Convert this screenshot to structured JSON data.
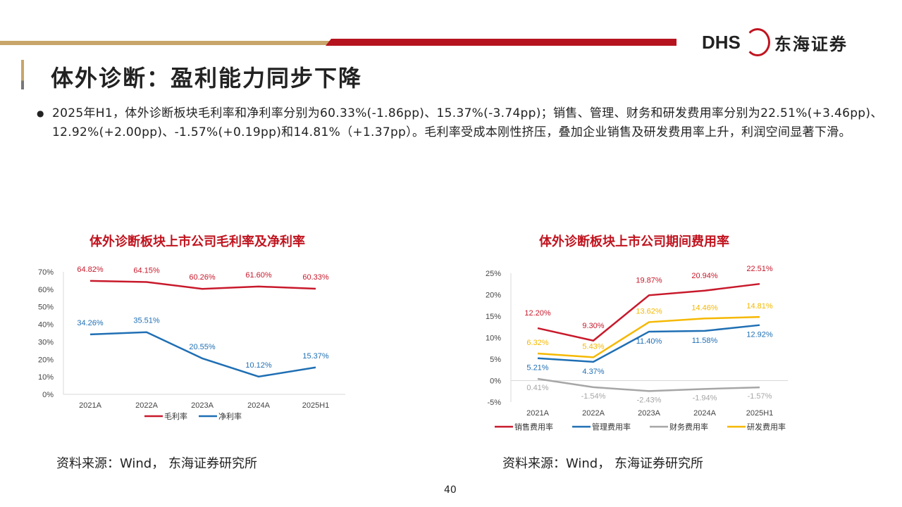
{
  "header": {
    "logo": "DHS 东海证券",
    "title": "体外诊断：盈利能力同步下降"
  },
  "bullet": "2025年H1，体外诊断板块毛利率和净利率分别为60.33%(-1.86pp)、15.37%(-3.74pp)；销售、管理、财务和研发费用率分别为22.51%(+3.46pp)、12.92%(+2.00pp)、-1.57%(+0.19pp)和14.81%（+1.37pp）。毛利率受成本刚性挤压，叠加企业销售及研发费用率上升，利润空间显著下滑。",
  "chart_data": [
    {
      "type": "line",
      "title": "体外诊断板块上市公司毛利率及净利率",
      "categories": [
        "2021A",
        "2022A",
        "2023A",
        "2024A",
        "2025H1"
      ],
      "ylim": [
        0,
        70
      ],
      "yticks": [
        "0%",
        "10%",
        "20%",
        "30%",
        "40%",
        "50%",
        "60%",
        "70%"
      ],
      "legend": "bottom",
      "grid": false,
      "series": [
        {
          "name": "毛利率",
          "color": "#c8192b",
          "values": [
            64.82,
            64.15,
            60.26,
            61.6,
            60.33
          ],
          "labels": [
            "64.82%",
            "64.15%",
            "60.26%",
            "61.60%",
            "60.33%"
          ]
        },
        {
          "name": "净利率",
          "color": "#1f6fb4",
          "values": [
            34.26,
            35.51,
            20.55,
            10.12,
            15.37
          ],
          "labels": [
            "34.26%",
            "35.51%",
            "20.55%",
            "10.12%",
            "15.37%"
          ]
        }
      ]
    },
    {
      "type": "line",
      "title": "体外诊断板块上市公司期间费用率",
      "categories": [
        "2021A",
        "2022A",
        "2023A",
        "2024A",
        "2025H1"
      ],
      "ylim": [
        -5,
        25
      ],
      "yticks": [
        "-5%",
        "0%",
        "5%",
        "10%",
        "15%",
        "20%",
        "25%"
      ],
      "legend": "bottom",
      "grid": false,
      "series": [
        {
          "name": "销售费用率",
          "color": "#c8192b",
          "values": [
            12.2,
            9.3,
            19.87,
            20.94,
            22.51
          ],
          "labels": [
            "12.20%",
            "9.30%",
            "19.87%",
            "20.94%",
            "22.51%"
          ]
        },
        {
          "name": "管理费用率",
          "color": "#1f6fb4",
          "values": [
            5.21,
            4.37,
            11.4,
            11.58,
            12.92
          ],
          "labels": [
            "5.21%",
            "4.37%",
            "11.40%",
            "11.58%",
            "12.92%"
          ]
        },
        {
          "name": "财务费用率",
          "color": "#a6a6a6",
          "values": [
            0.41,
            -1.54,
            -2.43,
            -1.94,
            -1.57
          ],
          "labels": [
            "0.41%",
            "-1.54%",
            "-2.43%",
            "-1.94%",
            "-1.57%"
          ]
        },
        {
          "name": "研发费用率",
          "color": "#f5b800",
          "values": [
            6.32,
            5.43,
            13.62,
            14.46,
            14.81
          ],
          "labels": [
            "6.32%",
            "5.43%",
            "13.62%",
            "14.46%",
            "14.81%"
          ]
        }
      ]
    }
  ],
  "source1": "资料来源：Wind， 东海证券研究所",
  "source2": "资料来源：Wind， 东海证券研究所",
  "page_number": "40"
}
